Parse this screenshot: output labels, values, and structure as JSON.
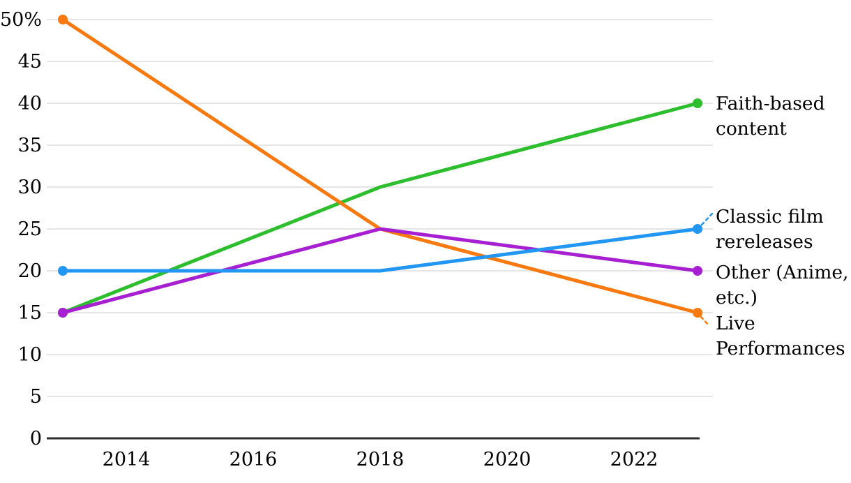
{
  "chart_data": {
    "type": "line",
    "x": [
      2013,
      2018,
      2023
    ],
    "series": [
      {
        "name": "Faith-based content",
        "label_lines": [
          "Faith-based",
          "content"
        ],
        "values": [
          15,
          30,
          40
        ],
        "color": "#2dbe2d",
        "leader": "none"
      },
      {
        "name": "Classic film rereleases",
        "label_lines": [
          "Classic film",
          "rereleases"
        ],
        "values": [
          20,
          20,
          25
        ],
        "color": "#2196f3",
        "leader": "up"
      },
      {
        "name": "Other (Anime, etc.)",
        "label_lines": [
          "Other (Anime,",
          "etc.)"
        ],
        "values": [
          15,
          25,
          20
        ],
        "color": "#a620d1",
        "leader": "none"
      },
      {
        "name": "Live Performances",
        "label_lines": [
          "Live",
          "Performances"
        ],
        "values": [
          50,
          25,
          15
        ],
        "color": "#f8790f",
        "leader": "down"
      }
    ],
    "y_ticks": [
      {
        "value": 0,
        "label": "0"
      },
      {
        "value": 5,
        "label": "5"
      },
      {
        "value": 10,
        "label": "10"
      },
      {
        "value": 15,
        "label": "15"
      },
      {
        "value": 20,
        "label": "20"
      },
      {
        "value": 25,
        "label": "25"
      },
      {
        "value": 30,
        "label": "30"
      },
      {
        "value": 35,
        "label": "35"
      },
      {
        "value": 40,
        "label": "40"
      },
      {
        "value": 45,
        "label": "45"
      },
      {
        "value": 50,
        "label": "50%"
      }
    ],
    "x_ticks": [
      {
        "value": 2014,
        "label": "2014"
      },
      {
        "value": 2016,
        "label": "2016"
      },
      {
        "value": 2018,
        "label": "2018"
      },
      {
        "value": 2020,
        "label": "2020"
      },
      {
        "value": 2022,
        "label": "2022"
      }
    ],
    "xlim": [
      2013,
      2023
    ],
    "ylim": [
      0,
      50
    ],
    "grid": true,
    "legend_position": "right-direct-labels",
    "colors": {
      "grid": "#e6e6e6",
      "axis": "#2e2e2e",
      "text": "#000000",
      "background": "#ffffff"
    }
  }
}
